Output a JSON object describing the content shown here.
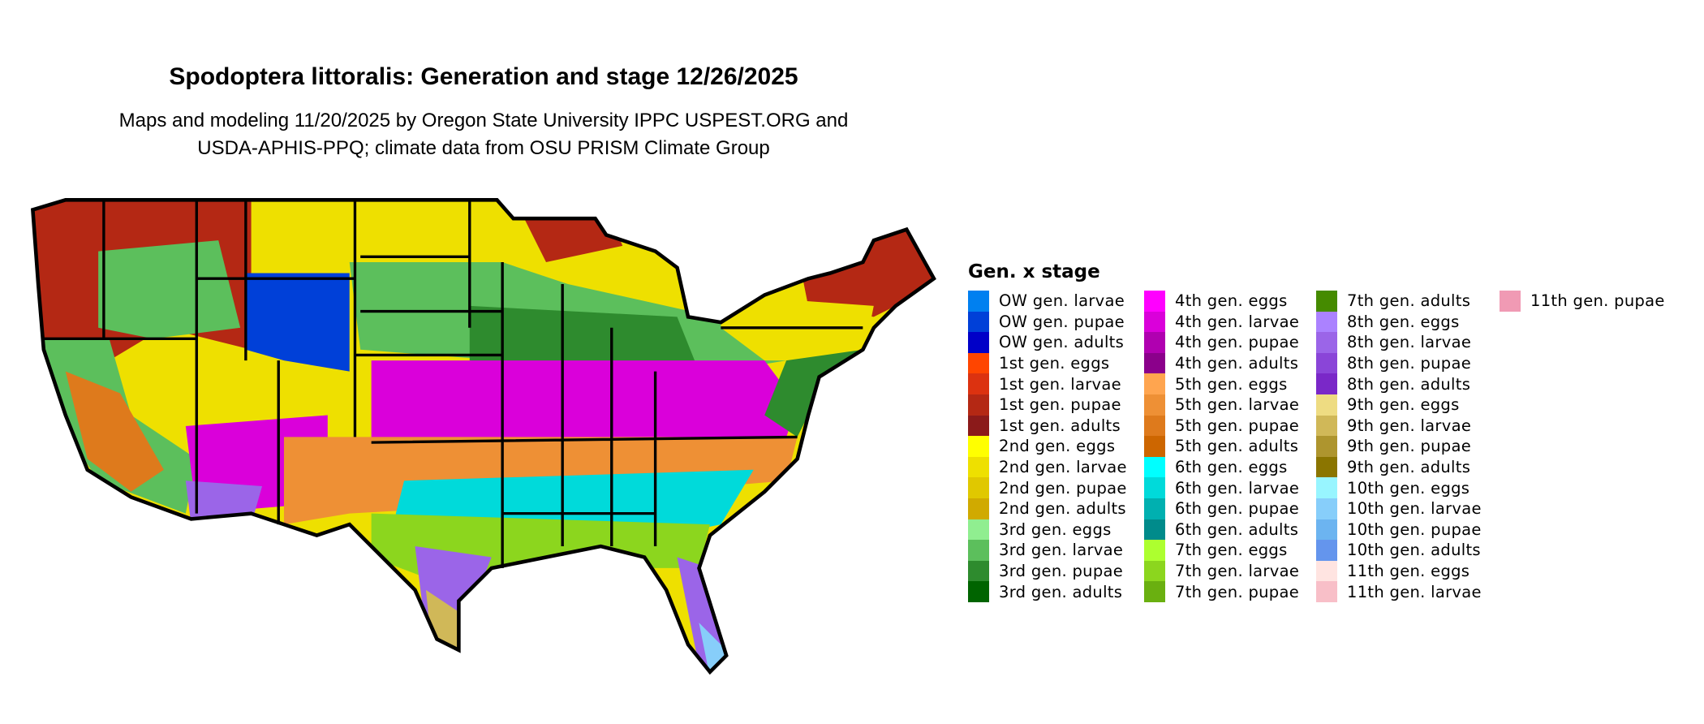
{
  "header": {
    "title": "Spodoptera littoralis: Generation and stage 12/26/2025",
    "subtitle_line1": "Maps and modeling 11/20/2025 by Oregon State University IPPC USPEST.ORG and",
    "subtitle_line2": "USDA-APHIS-PPQ; climate data from OSU PRISM Climate Group"
  },
  "legend": {
    "title": "Gen. x stage",
    "items": [
      {
        "label": "OW gen. larvae",
        "color": "#0080F0"
      },
      {
        "label": "OW gen. pupae",
        "color": "#0040D8"
      },
      {
        "label": "OW gen. adults",
        "color": "#0000C8"
      },
      {
        "label": "1st gen. eggs",
        "color": "#FF4500"
      },
      {
        "label": "1st gen. larvae",
        "color": "#DC3210"
      },
      {
        "label": "1st gen. pupae",
        "color": "#B42814"
      },
      {
        "label": "1st gen. adults",
        "color": "#8B1A1A"
      },
      {
        "label": "2nd gen. eggs",
        "color": "#FFFF00"
      },
      {
        "label": "2nd gen. larvae",
        "color": "#EEE000"
      },
      {
        "label": "2nd gen. pupae",
        "color": "#E0C800"
      },
      {
        "label": "2nd gen. adults",
        "color": "#D0AA00"
      },
      {
        "label": "3rd gen. eggs",
        "color": "#90EE90"
      },
      {
        "label": "3rd gen. larvae",
        "color": "#5CBF5C"
      },
      {
        "label": "3rd gen. pupae",
        "color": "#2E8B2E"
      },
      {
        "label": "3rd gen. adults",
        "color": "#006400"
      },
      {
        "label": "4th gen. eggs",
        "color": "#FF00FF"
      },
      {
        "label": "4th gen. larvae",
        "color": "#DA00DA"
      },
      {
        "label": "4th gen. pupae",
        "color": "#B000B0"
      },
      {
        "label": "4th gen. adults",
        "color": "#8B008B"
      },
      {
        "label": "5th gen. eggs",
        "color": "#FFA54F"
      },
      {
        "label": "5th gen. larvae",
        "color": "#EE9035"
      },
      {
        "label": "5th gen. pupae",
        "color": "#DE7A1C"
      },
      {
        "label": "5th gen. adults",
        "color": "#CD6600"
      },
      {
        "label": "6th gen. eggs",
        "color": "#00FFFF"
      },
      {
        "label": "6th gen. larvae",
        "color": "#00DADA"
      },
      {
        "label": "6th gen. pupae",
        "color": "#00B0B0"
      },
      {
        "label": "6th gen. adults",
        "color": "#008B8B"
      },
      {
        "label": "7th gen. eggs",
        "color": "#ADFF2F"
      },
      {
        "label": "7th gen. larvae",
        "color": "#8CD61E"
      },
      {
        "label": "7th gen. pupae",
        "color": "#6AB010"
      },
      {
        "label": "7th gen. adults",
        "color": "#458B00"
      },
      {
        "label": "8th gen. eggs",
        "color": "#AB82FF"
      },
      {
        "label": "8th gen. larvae",
        "color": "#9B65E8"
      },
      {
        "label": "8th gen. pupae",
        "color": "#8A45D8"
      },
      {
        "label": "8th gen. adults",
        "color": "#7A28C8"
      },
      {
        "label": "9th gen. eggs",
        "color": "#EEDC82"
      },
      {
        "label": "9th gen. larvae",
        "color": "#D0B858"
      },
      {
        "label": "9th gen. pupae",
        "color": "#AE952E"
      },
      {
        "label": "9th gen. adults",
        "color": "#8B7500"
      },
      {
        "label": "10th gen. eggs",
        "color": "#98F5FF"
      },
      {
        "label": "10th gen. larvae",
        "color": "#87CEFA"
      },
      {
        "label": "10th gen. pupae",
        "color": "#6CB4F0"
      },
      {
        "label": "10th gen. adults",
        "color": "#6495ED"
      },
      {
        "label": "11th gen. eggs",
        "color": "#FFE4E1"
      },
      {
        "label": "11th gen. larvae",
        "color": "#F8BFC8"
      },
      {
        "label": "11th gen. pupae",
        "color": "#F09AB4"
      }
    ]
  }
}
